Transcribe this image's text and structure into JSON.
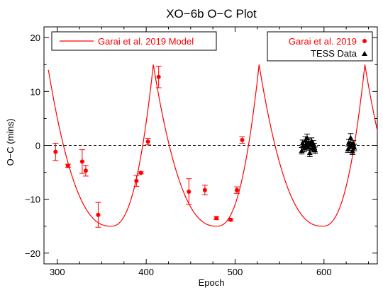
{
  "chart_data": {
    "type": "scatter",
    "title": "XO−6b O−C Plot",
    "xlabel": "Epoch",
    "ylabel": "O−C (mins)",
    "xlim": [
      285,
      660
    ],
    "ylim": [
      -22,
      22
    ],
    "xticks": [
      300,
      400,
      500,
      600
    ],
    "yticks": [
      -20,
      -10,
      0,
      10,
      20
    ],
    "ytick_labels": [
      "−20",
      "−10",
      "0",
      "10",
      "20"
    ],
    "zero_line": 0,
    "legend_left": {
      "label": "Garai et al. 2019 Model",
      "placement": "top-left"
    },
    "legend_right": {
      "placement": "top-right",
      "items": [
        {
          "label": "Garai et al. 2019",
          "marker": "circle",
          "color": "#ff0000"
        },
        {
          "label": "TESS Data",
          "marker": "triangle",
          "color": "#000000"
        }
      ]
    },
    "model": {
      "name": "Garai et al. 2019 Model",
      "color": "#ff0000",
      "period": 119,
      "epoch_of_peak": 408,
      "amplitude_max": 15,
      "amplitude_min": -15,
      "x_start": 290,
      "x_end": 660
    },
    "series": [
      {
        "name": "Garai et al. 2019",
        "color": "#ff0000",
        "marker": "circle",
        "points": [
          {
            "x": 298,
            "y": -1.2,
            "err": 1.6
          },
          {
            "x": 312,
            "y": -3.8,
            "err": 0.3
          },
          {
            "x": 328,
            "y": -3.0,
            "err": 2.2
          },
          {
            "x": 332,
            "y": -4.7,
            "err": 1.0
          },
          {
            "x": 346,
            "y": -12.9,
            "err": 2.3
          },
          {
            "x": 389,
            "y": -6.6,
            "err": 1.0
          },
          {
            "x": 394,
            "y": -5.1,
            "err": 0.2
          },
          {
            "x": 402,
            "y": 0.7,
            "err": 0.6
          },
          {
            "x": 414,
            "y": 12.7,
            "err": 2.0
          },
          {
            "x": 448,
            "y": -8.6,
            "err": 2.4
          },
          {
            "x": 466,
            "y": -8.3,
            "err": 0.9
          },
          {
            "x": 479,
            "y": -13.5,
            "err": 0.3
          },
          {
            "x": 495,
            "y": -13.8,
            "err": 0.2
          },
          {
            "x": 502,
            "y": -8.3,
            "err": 0.6
          },
          {
            "x": 508,
            "y": 1.0,
            "err": 0.6
          }
        ]
      },
      {
        "name": "TESS Data",
        "color": "#000000",
        "marker": "triangle",
        "points": [
          {
            "x": 575,
            "y": -1.0,
            "err": 0.6
          },
          {
            "x": 576,
            "y": 0.4,
            "err": 0.6
          },
          {
            "x": 577,
            "y": 0.0,
            "err": 0.6
          },
          {
            "x": 578,
            "y": -0.5,
            "err": 0.7
          },
          {
            "x": 579,
            "y": 0.9,
            "err": 0.7
          },
          {
            "x": 580,
            "y": 0.2,
            "err": 0.6
          },
          {
            "x": 581,
            "y": 1.4,
            "err": 0.7
          },
          {
            "x": 582,
            "y": -0.3,
            "err": 0.6
          },
          {
            "x": 583,
            "y": 0.6,
            "err": 0.6
          },
          {
            "x": 584,
            "y": -1.4,
            "err": 0.7
          },
          {
            "x": 585,
            "y": 0.1,
            "err": 0.6
          },
          {
            "x": 586,
            "y": 0.8,
            "err": 0.6
          },
          {
            "x": 587,
            "y": -0.6,
            "err": 0.6
          },
          {
            "x": 588,
            "y": 0.3,
            "err": 0.6
          },
          {
            "x": 589,
            "y": -0.2,
            "err": 0.6
          },
          {
            "x": 590,
            "y": -0.9,
            "err": 0.6
          },
          {
            "x": 627,
            "y": -0.7,
            "err": 0.6
          },
          {
            "x": 628,
            "y": 0.5,
            "err": 0.6
          },
          {
            "x": 629,
            "y": -0.2,
            "err": 0.7
          },
          {
            "x": 630,
            "y": 1.4,
            "err": 0.8
          },
          {
            "x": 631,
            "y": 0.0,
            "err": 0.6
          },
          {
            "x": 632,
            "y": -1.1,
            "err": 0.6
          },
          {
            "x": 633,
            "y": 0.3,
            "err": 0.6
          },
          {
            "x": 634,
            "y": -0.4,
            "err": 0.6
          }
        ]
      }
    ]
  }
}
